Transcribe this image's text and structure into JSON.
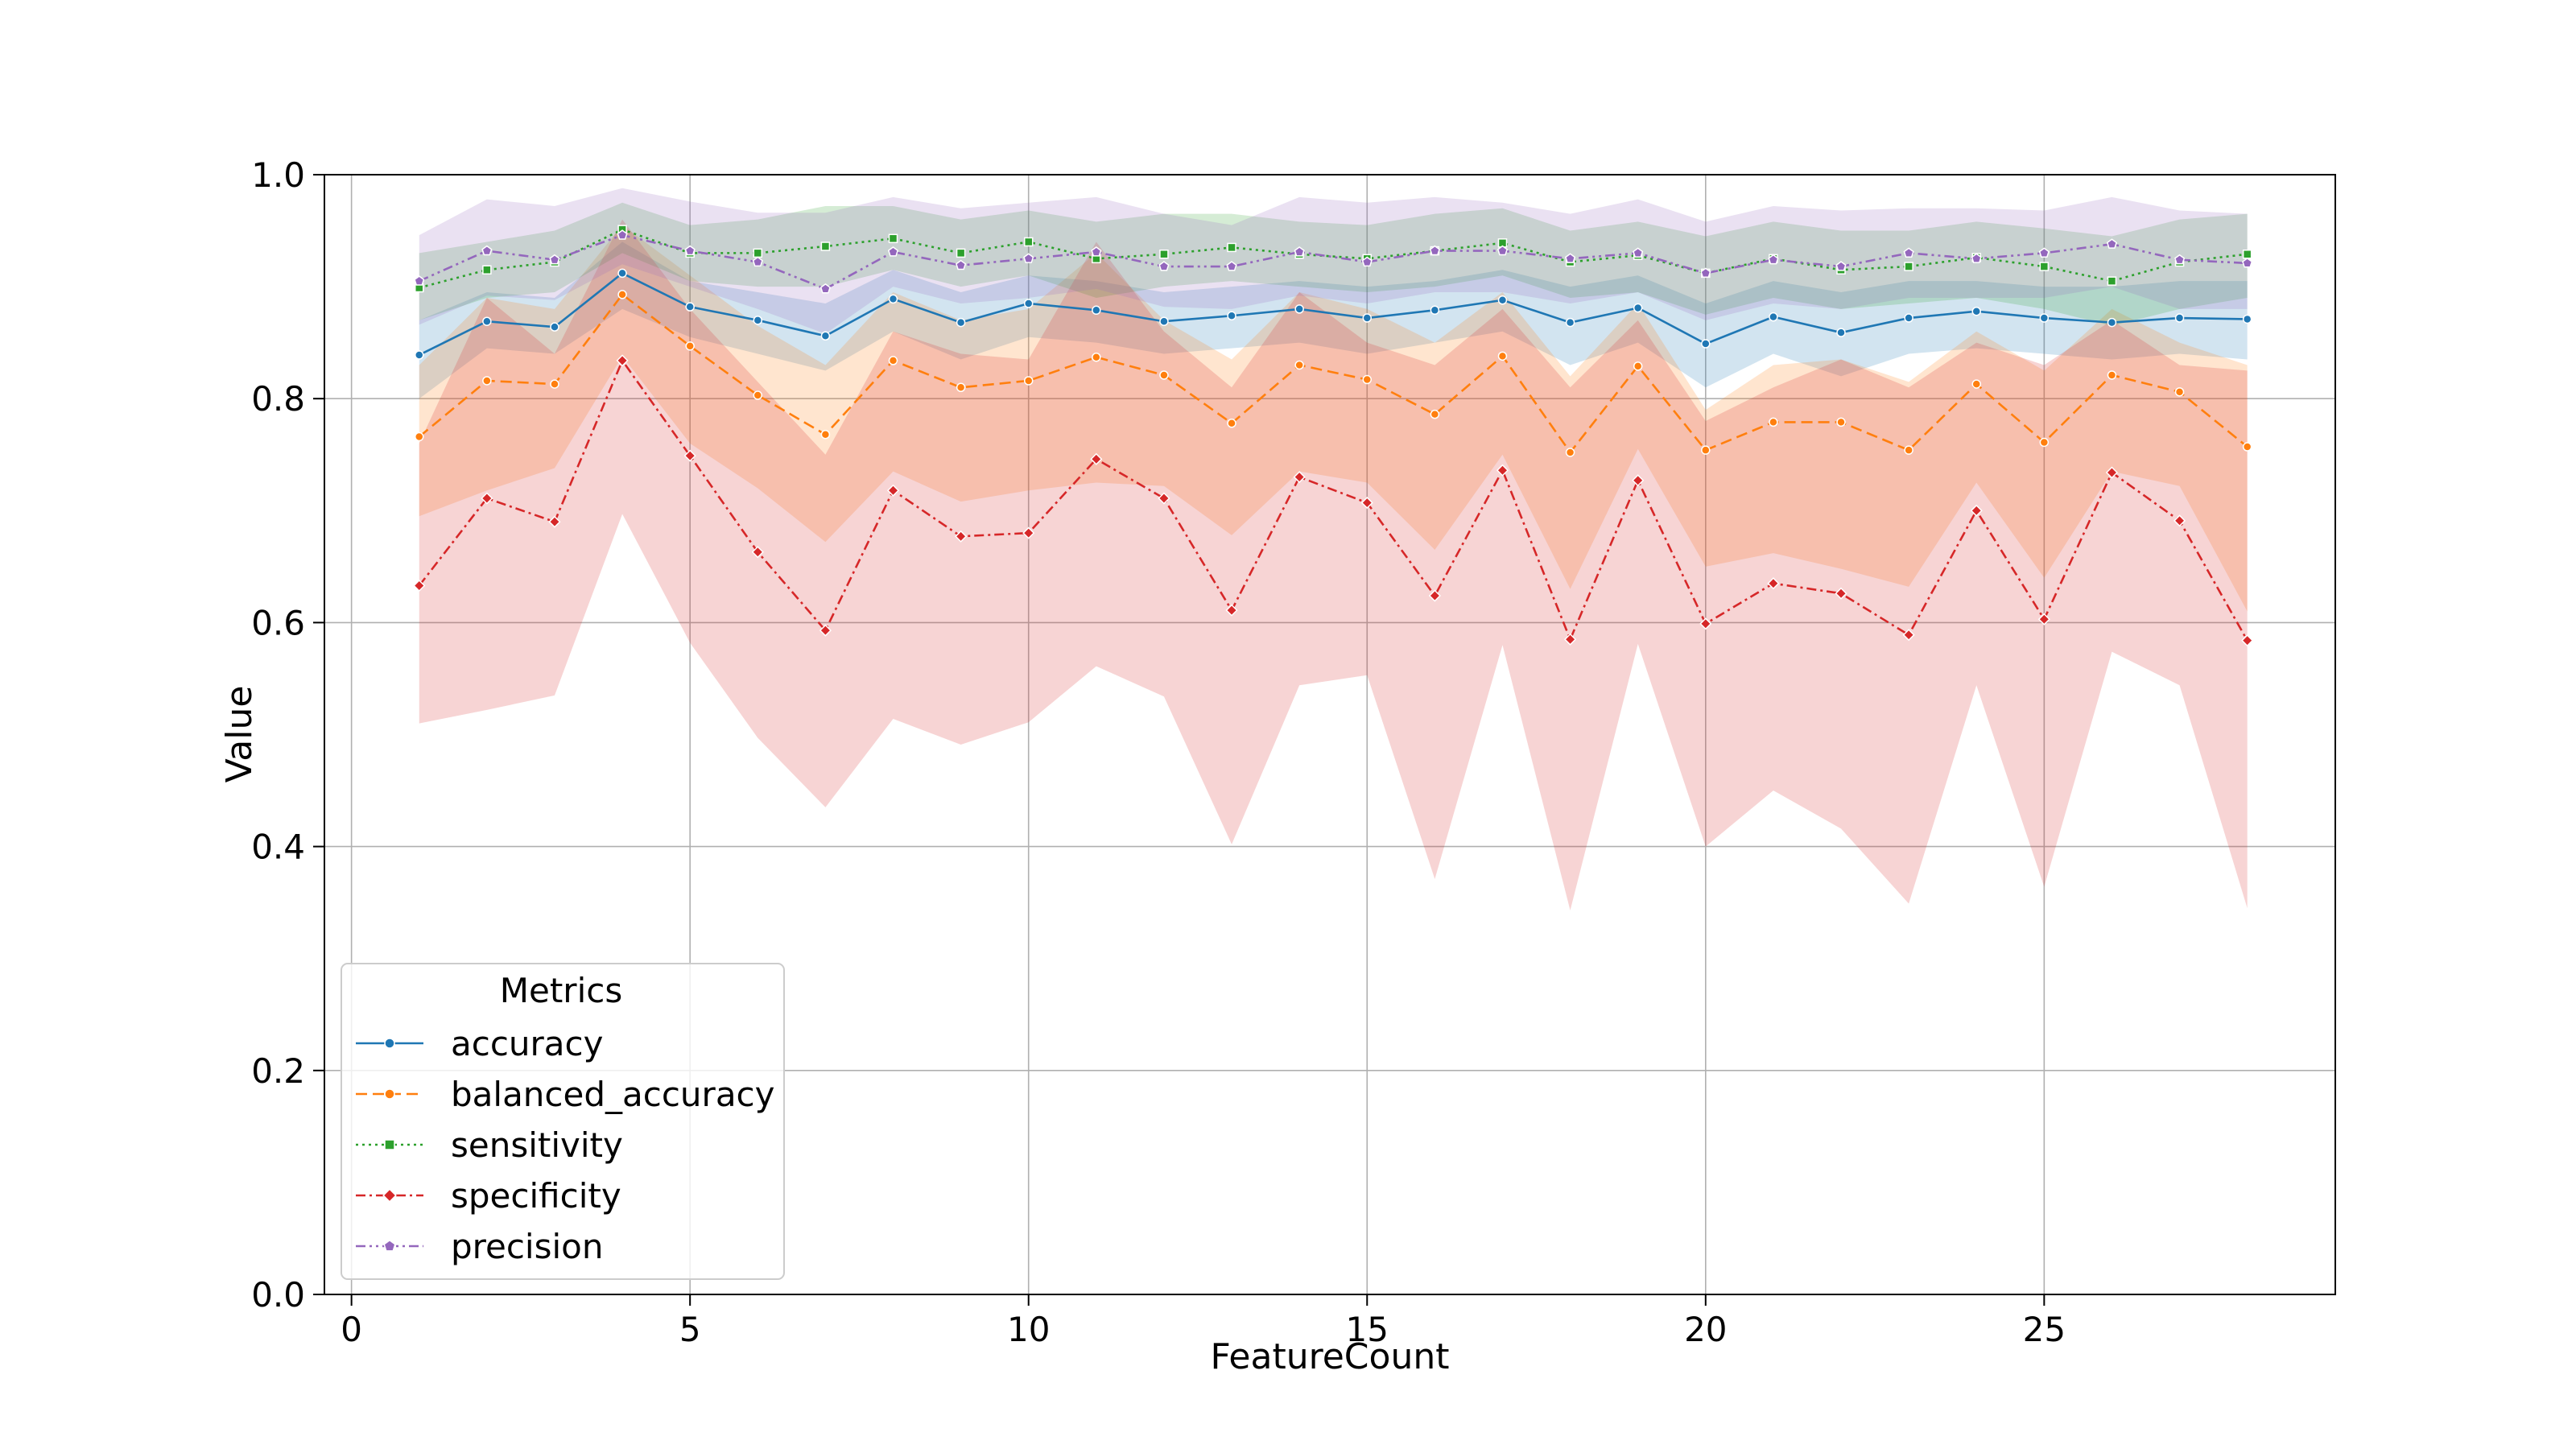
{
  "chart_data": {
    "type": "line",
    "title": "",
    "xlabel": "FeatureCount",
    "ylabel": "Value",
    "xlim": [
      -0.4,
      29.3
    ],
    "ylim": [
      0.0,
      1.0
    ],
    "x_ticks": [
      0,
      5,
      10,
      15,
      20,
      25
    ],
    "y_ticks": [
      0.0,
      0.2,
      0.4,
      0.6,
      0.8,
      1.0
    ],
    "x_tick_labels": [
      "0",
      "5",
      "10",
      "15",
      "20",
      "25"
    ],
    "y_tick_labels": [
      "0.0",
      "0.2",
      "0.4",
      "0.6",
      "0.8",
      "1.0"
    ],
    "grid": true,
    "legend": {
      "title": "Metrics",
      "placement": "lower-left"
    },
    "x": [
      1,
      2,
      3,
      4,
      5,
      6,
      7,
      8,
      9,
      10,
      11,
      12,
      13,
      14,
      15,
      16,
      17,
      18,
      19,
      20,
      21,
      22,
      23,
      24,
      25,
      26,
      27,
      28
    ],
    "series": [
      {
        "name": "accuracy",
        "color": "#1f77b4",
        "dash": "solid",
        "marker": "circle",
        "values": [
          0.839,
          0.869,
          0.864,
          0.912,
          0.882,
          0.87,
          0.856,
          0.889,
          0.868,
          0.885,
          0.879,
          0.869,
          0.874,
          0.88,
          0.872,
          0.879,
          0.888,
          0.868,
          0.881,
          0.849,
          0.873,
          0.859,
          0.872,
          0.878,
          0.872,
          0.868,
          0.872,
          0.871
        ],
        "lower": [
          0.8,
          0.845,
          0.84,
          0.88,
          0.855,
          0.84,
          0.825,
          0.86,
          0.835,
          0.855,
          0.85,
          0.84,
          0.845,
          0.85,
          0.84,
          0.85,
          0.86,
          0.83,
          0.85,
          0.81,
          0.84,
          0.82,
          0.84,
          0.845,
          0.84,
          0.835,
          0.84,
          0.835
        ],
        "upper": [
          0.87,
          0.895,
          0.89,
          0.94,
          0.905,
          0.895,
          0.885,
          0.915,
          0.895,
          0.91,
          0.905,
          0.895,
          0.9,
          0.905,
          0.9,
          0.905,
          0.915,
          0.9,
          0.91,
          0.885,
          0.905,
          0.895,
          0.905,
          0.905,
          0.9,
          0.9,
          0.905,
          0.905
        ]
      },
      {
        "name": "balanced_accuracy",
        "color": "#ff7f0e",
        "dash": "dashed",
        "marker": "circle",
        "values": [
          0.766,
          0.816,
          0.813,
          0.893,
          0.847,
          0.803,
          0.768,
          0.834,
          0.81,
          0.816,
          0.837,
          0.821,
          0.778,
          0.83,
          0.817,
          0.786,
          0.838,
          0.752,
          0.829,
          0.754,
          0.779,
          0.779,
          0.754,
          0.813,
          0.761,
          0.821,
          0.806,
          0.757
        ],
        "lower": [
          0.695,
          0.718,
          0.738,
          0.838,
          0.76,
          0.72,
          0.672,
          0.735,
          0.708,
          0.718,
          0.725,
          0.722,
          0.678,
          0.735,
          0.725,
          0.665,
          0.75,
          0.63,
          0.755,
          0.65,
          0.662,
          0.648,
          0.632,
          0.725,
          0.64,
          0.735,
          0.722,
          0.61
        ],
        "upper": [
          0.83,
          0.89,
          0.88,
          0.955,
          0.91,
          0.865,
          0.83,
          0.895,
          0.87,
          0.88,
          0.93,
          0.87,
          0.835,
          0.895,
          0.88,
          0.85,
          0.895,
          0.82,
          0.885,
          0.79,
          0.83,
          0.835,
          0.815,
          0.86,
          0.825,
          0.88,
          0.85,
          0.83
        ]
      },
      {
        "name": "sensitivity",
        "color": "#2ca02c",
        "dash": "dotted",
        "marker": "square",
        "values": [
          0.899,
          0.915,
          0.922,
          0.951,
          0.93,
          0.93,
          0.936,
          0.943,
          0.93,
          0.94,
          0.925,
          0.929,
          0.935,
          0.929,
          0.925,
          0.932,
          0.939,
          0.922,
          0.928,
          0.912,
          0.925,
          0.915,
          0.918,
          0.926,
          0.918,
          0.905,
          0.922,
          0.929
        ],
        "lower": [
          0.87,
          0.89,
          0.895,
          0.93,
          0.905,
          0.9,
          0.9,
          0.915,
          0.9,
          0.91,
          0.89,
          0.9,
          0.905,
          0.9,
          0.895,
          0.9,
          0.91,
          0.89,
          0.895,
          0.875,
          0.89,
          0.88,
          0.885,
          0.89,
          0.88,
          0.865,
          0.88,
          0.89
        ],
        "upper": [
          0.93,
          0.94,
          0.95,
          0.975,
          0.955,
          0.96,
          0.972,
          0.972,
          0.96,
          0.968,
          0.958,
          0.965,
          0.965,
          0.958,
          0.955,
          0.965,
          0.97,
          0.95,
          0.958,
          0.945,
          0.958,
          0.95,
          0.95,
          0.958,
          0.952,
          0.945,
          0.96,
          0.965
        ]
      },
      {
        "name": "specificity",
        "color": "#d62728",
        "dash": "dashdot",
        "marker": "diamond",
        "values": [
          0.633,
          0.711,
          0.69,
          0.834,
          0.749,
          0.663,
          0.593,
          0.718,
          0.677,
          0.68,
          0.746,
          0.711,
          0.611,
          0.73,
          0.707,
          0.624,
          0.736,
          0.585,
          0.727,
          0.599,
          0.635,
          0.626,
          0.589,
          0.7,
          0.603,
          0.734,
          0.691,
          0.584
        ],
        "lower": [
          0.51,
          0.522,
          0.535,
          0.697,
          0.582,
          0.497,
          0.435,
          0.514,
          0.491,
          0.511,
          0.561,
          0.534,
          0.402,
          0.544,
          0.553,
          0.371,
          0.58,
          0.343,
          0.581,
          0.4,
          0.45,
          0.416,
          0.349,
          0.544,
          0.364,
          0.574,
          0.544,
          0.345
        ],
        "upper": [
          0.76,
          0.89,
          0.84,
          0.96,
          0.88,
          0.815,
          0.75,
          0.86,
          0.84,
          0.835,
          0.94,
          0.86,
          0.81,
          0.895,
          0.85,
          0.83,
          0.88,
          0.81,
          0.87,
          0.78,
          0.81,
          0.835,
          0.81,
          0.85,
          0.83,
          0.87,
          0.83,
          0.825
        ]
      },
      {
        "name": "precision",
        "color": "#9467bd",
        "dash": "dashdotdot",
        "marker": "pentagon",
        "values": [
          0.905,
          0.932,
          0.924,
          0.946,
          0.932,
          0.922,
          0.898,
          0.931,
          0.919,
          0.925,
          0.931,
          0.918,
          0.918,
          0.931,
          0.922,
          0.932,
          0.932,
          0.925,
          0.93,
          0.912,
          0.924,
          0.918,
          0.93,
          0.925,
          0.93,
          0.938,
          0.924,
          0.921
        ],
        "lower": [
          0.866,
          0.892,
          0.888,
          0.92,
          0.9,
          0.88,
          0.858,
          0.9,
          0.885,
          0.89,
          0.898,
          0.882,
          0.88,
          0.892,
          0.885,
          0.895,
          0.895,
          0.885,
          0.895,
          0.87,
          0.885,
          0.88,
          0.89,
          0.89,
          0.89,
          0.9,
          0.88,
          0.88
        ],
        "upper": [
          0.946,
          0.978,
          0.972,
          0.988,
          0.976,
          0.966,
          0.966,
          0.98,
          0.97,
          0.975,
          0.98,
          0.965,
          0.955,
          0.98,
          0.975,
          0.98,
          0.975,
          0.965,
          0.978,
          0.958,
          0.972,
          0.968,
          0.97,
          0.97,
          0.968,
          0.98,
          0.968,
          0.965
        ]
      }
    ]
  }
}
